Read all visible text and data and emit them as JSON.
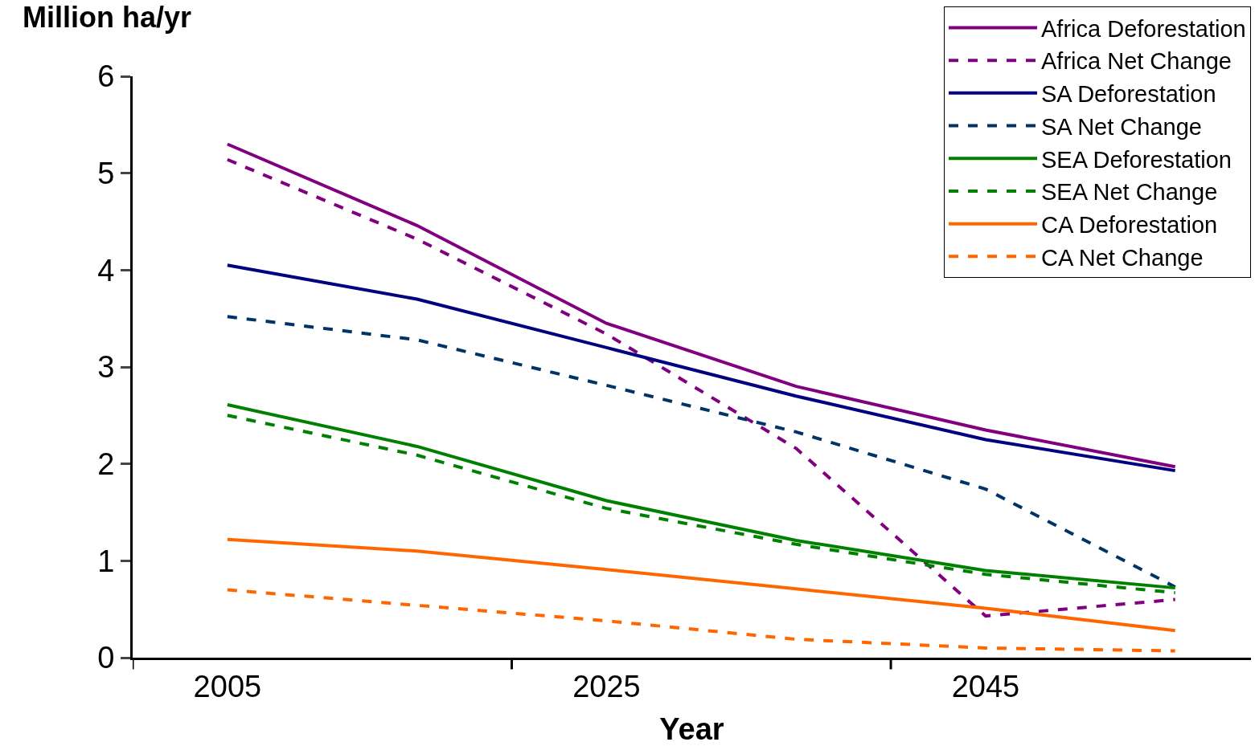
{
  "chart_data": {
    "type": "line",
    "xlabel": "Year",
    "ylabel": "Million ha/yr",
    "x": [
      2005,
      2015,
      2025,
      2035,
      2045,
      2055
    ],
    "series": [
      {
        "name": "Africa Deforestation",
        "color": "#800080",
        "line_style": "solid",
        "values": [
          5.3,
          4.46,
          3.45,
          2.8,
          2.35,
          1.97
        ]
      },
      {
        "name": "Africa Net Change",
        "color": "#800080",
        "line_style": "dashed",
        "values": [
          5.14,
          4.32,
          3.34,
          2.16,
          0.43,
          0.6
        ]
      },
      {
        "name": "SA Deforestation",
        "color": "#000080",
        "line_style": "solid",
        "values": [
          4.05,
          3.7,
          3.2,
          2.7,
          2.25,
          1.93
        ]
      },
      {
        "name": "SA Net Change",
        "color": "#003366",
        "line_style": "dashed",
        "values": [
          3.52,
          3.28,
          2.81,
          2.33,
          1.74,
          0.73
        ]
      },
      {
        "name": "SEA Deforestation",
        "color": "#008000",
        "line_style": "solid",
        "values": [
          2.61,
          2.18,
          1.62,
          1.21,
          0.9,
          0.72
        ]
      },
      {
        "name": "SEA Net Change",
        "color": "#008000",
        "line_style": "dashed",
        "values": [
          2.5,
          2.09,
          1.54,
          1.17,
          0.86,
          0.67
        ]
      },
      {
        "name": "CA Deforestation",
        "color": "#ff6600",
        "line_style": "solid",
        "values": [
          1.22,
          1.1,
          0.91,
          0.71,
          0.51,
          0.28
        ]
      },
      {
        "name": "CA Net Change",
        "color": "#ff6600",
        "line_style": "dashed",
        "values": [
          0.7,
          0.54,
          0.38,
          0.19,
          0.1,
          0.07
        ]
      }
    ],
    "xlim": [
      2000,
      2059
    ],
    "xticks": [
      {
        "value": 2000,
        "label": null
      },
      2005,
      {
        "value": 2020,
        "label": null
      },
      2025,
      {
        "value": 2040,
        "label": null
      },
      2045
    ],
    "ylim": [
      0,
      6
    ],
    "yticks": [
      0,
      1,
      2,
      3,
      4,
      5,
      6
    ],
    "legend": "top right",
    "marker": "none"
  }
}
